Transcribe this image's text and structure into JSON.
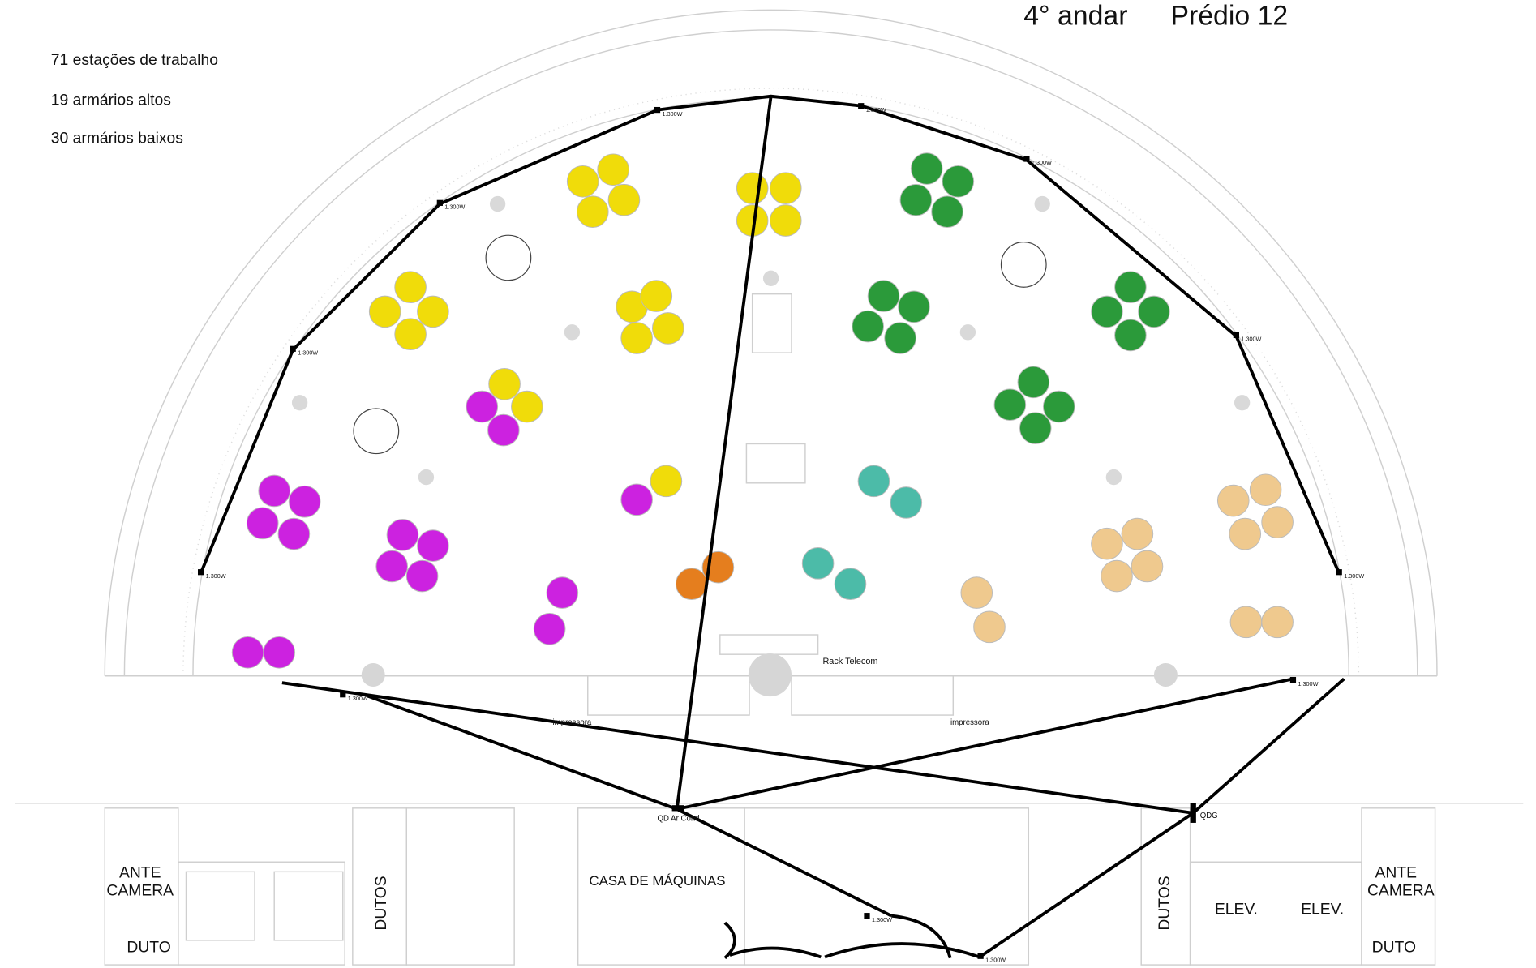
{
  "header": {
    "floor": "4° andar",
    "building": "Prédio 12"
  },
  "legend": [
    "71 estações de trabalho",
    "19 armários altos",
    "30 armários baixos"
  ],
  "rooms": [
    "ANTE",
    "CAMERA",
    "DUTO",
    "DUTOS",
    "CASA DE MÁQUINAS",
    "DUTOS",
    "ELEV.",
    "ELEV.",
    "ANTE",
    "CAMERA",
    "DUTO"
  ],
  "equipment": [
    "Rack Telecom",
    "impressora",
    "impressora",
    "QD Ar Cond",
    "QDG"
  ],
  "power_labels": [
    "1.300W",
    "1.300W",
    "1.300W",
    "1.300W",
    "1.300W",
    "1.300W",
    "1.300W",
    "1.300W",
    "1.300W",
    "1.300W",
    "1.300W",
    "1.300W"
  ]
}
